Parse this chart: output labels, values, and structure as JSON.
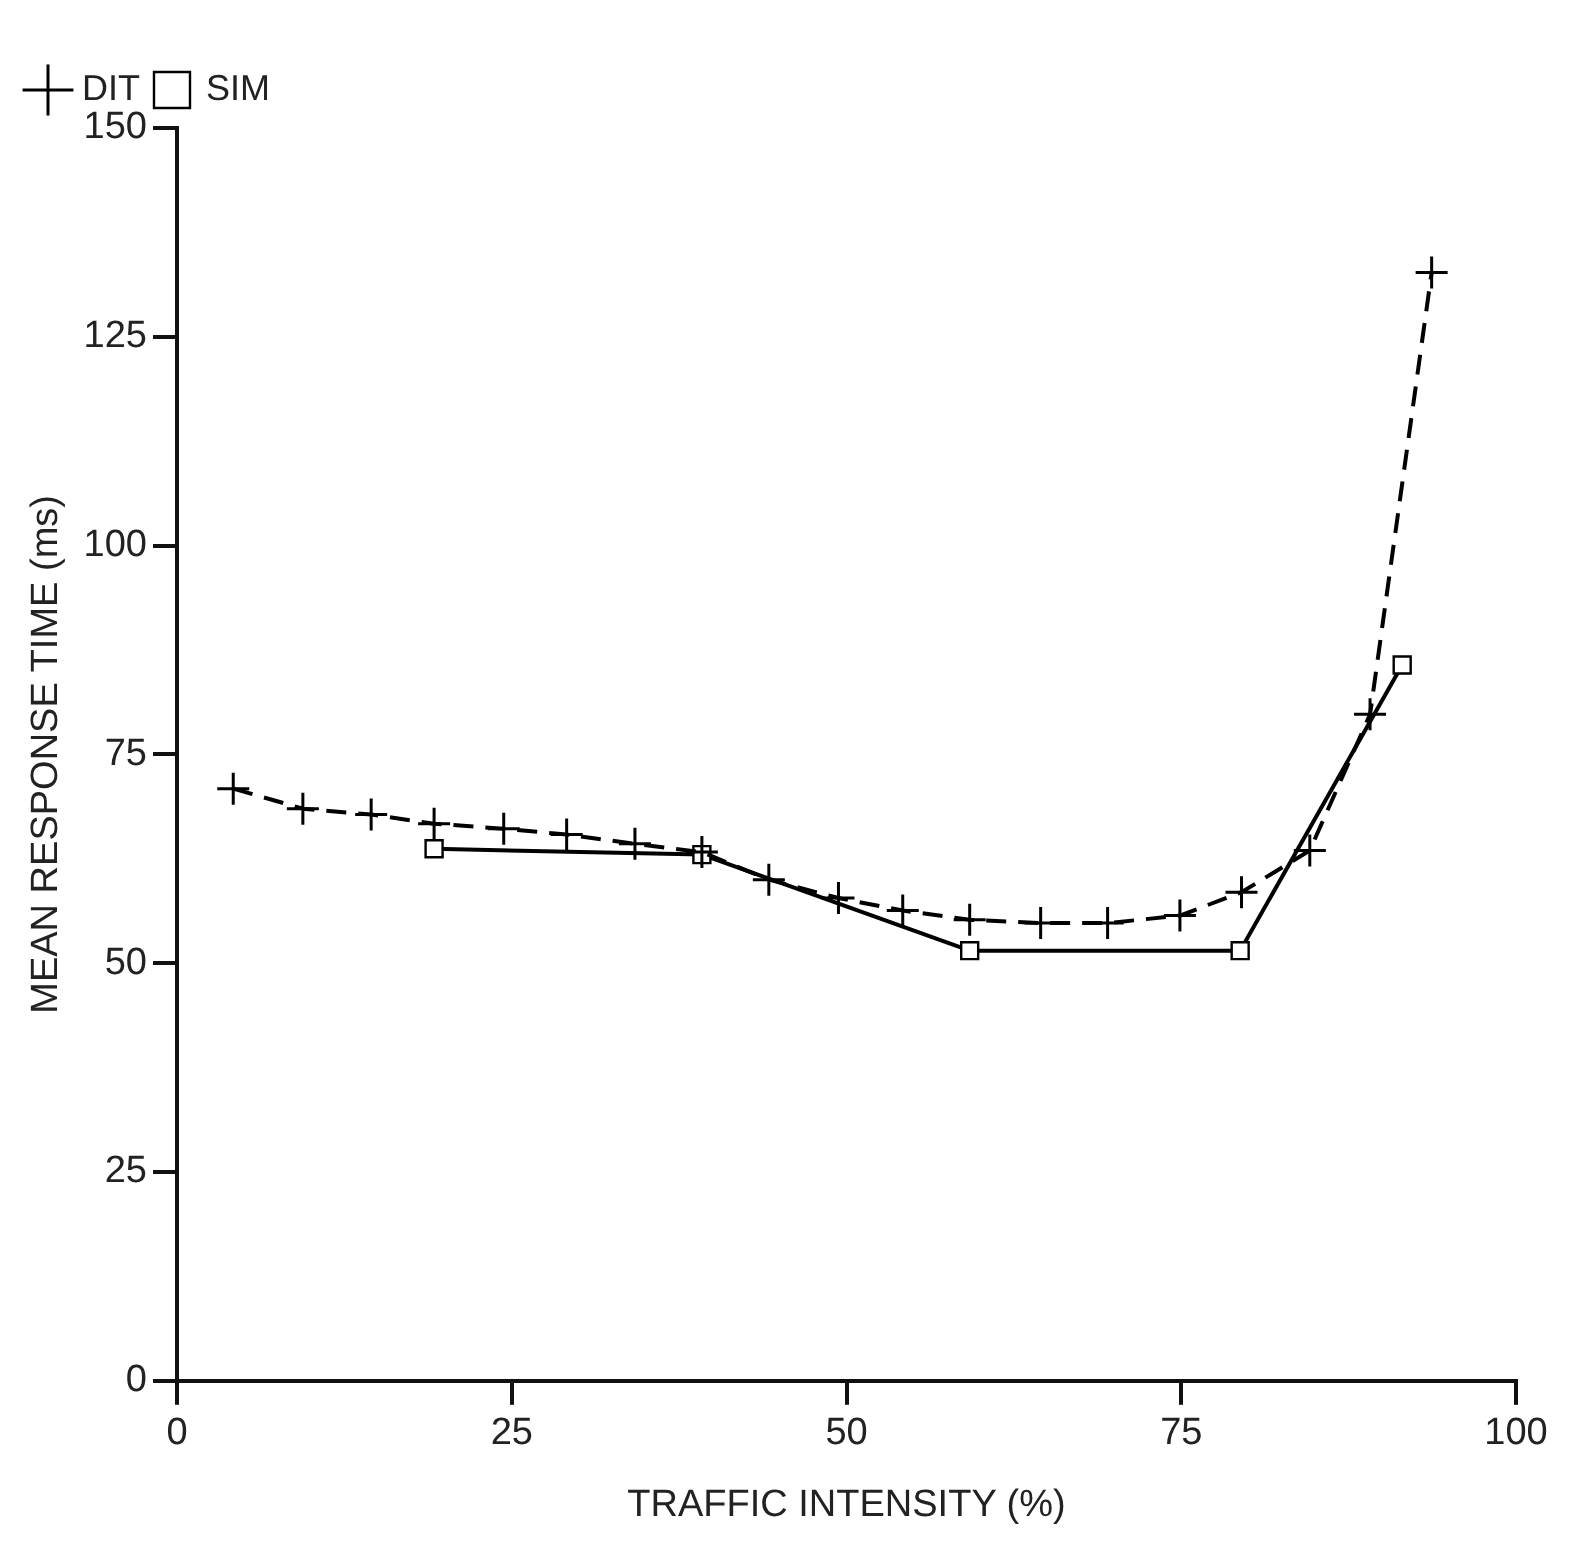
{
  "chart_data": {
    "type": "line",
    "xlabel": "TRAFFIC INTENSITY (%)",
    "ylabel": "MEAN RESPONSE TIME (ms)",
    "xlim": [
      0,
      100
    ],
    "xticks": [
      0,
      25,
      50,
      75,
      100
    ],
    "ylim": [
      0,
      150
    ],
    "yticks": [
      0,
      25,
      50,
      75,
      100,
      125,
      150
    ],
    "grid": false,
    "legend": "top left",
    "series": [
      {
        "name": "DIT",
        "color": "#000000",
        "marker": "cross",
        "line_style": "dashed",
        "x": [
          4.2,
          9.4,
          14.5,
          19.2,
          24.4,
          29.1,
          34.2,
          39.2,
          44.2,
          49.4,
          54.2,
          59.2,
          64.5,
          69.5,
          74.9,
          79.5,
          84.6,
          89.1,
          93.7
        ],
        "values": [
          70.9,
          68.5,
          67.8,
          66.7,
          66.1,
          65.4,
          64.3,
          63.3,
          60,
          57.8,
          56.3,
          55.2,
          54.8,
          54.8,
          55.7,
          58.5,
          63.5,
          79.8,
          132.7
        ]
      },
      {
        "name": "SIM",
        "color": "#000000",
        "marker": "square",
        "line_style": "solid",
        "x": [
          19.2,
          39.2,
          59.2,
          79.4,
          91.5
        ],
        "values": [
          63.7,
          63.0,
          51.5,
          51.5,
          85.7
        ]
      }
    ]
  }
}
